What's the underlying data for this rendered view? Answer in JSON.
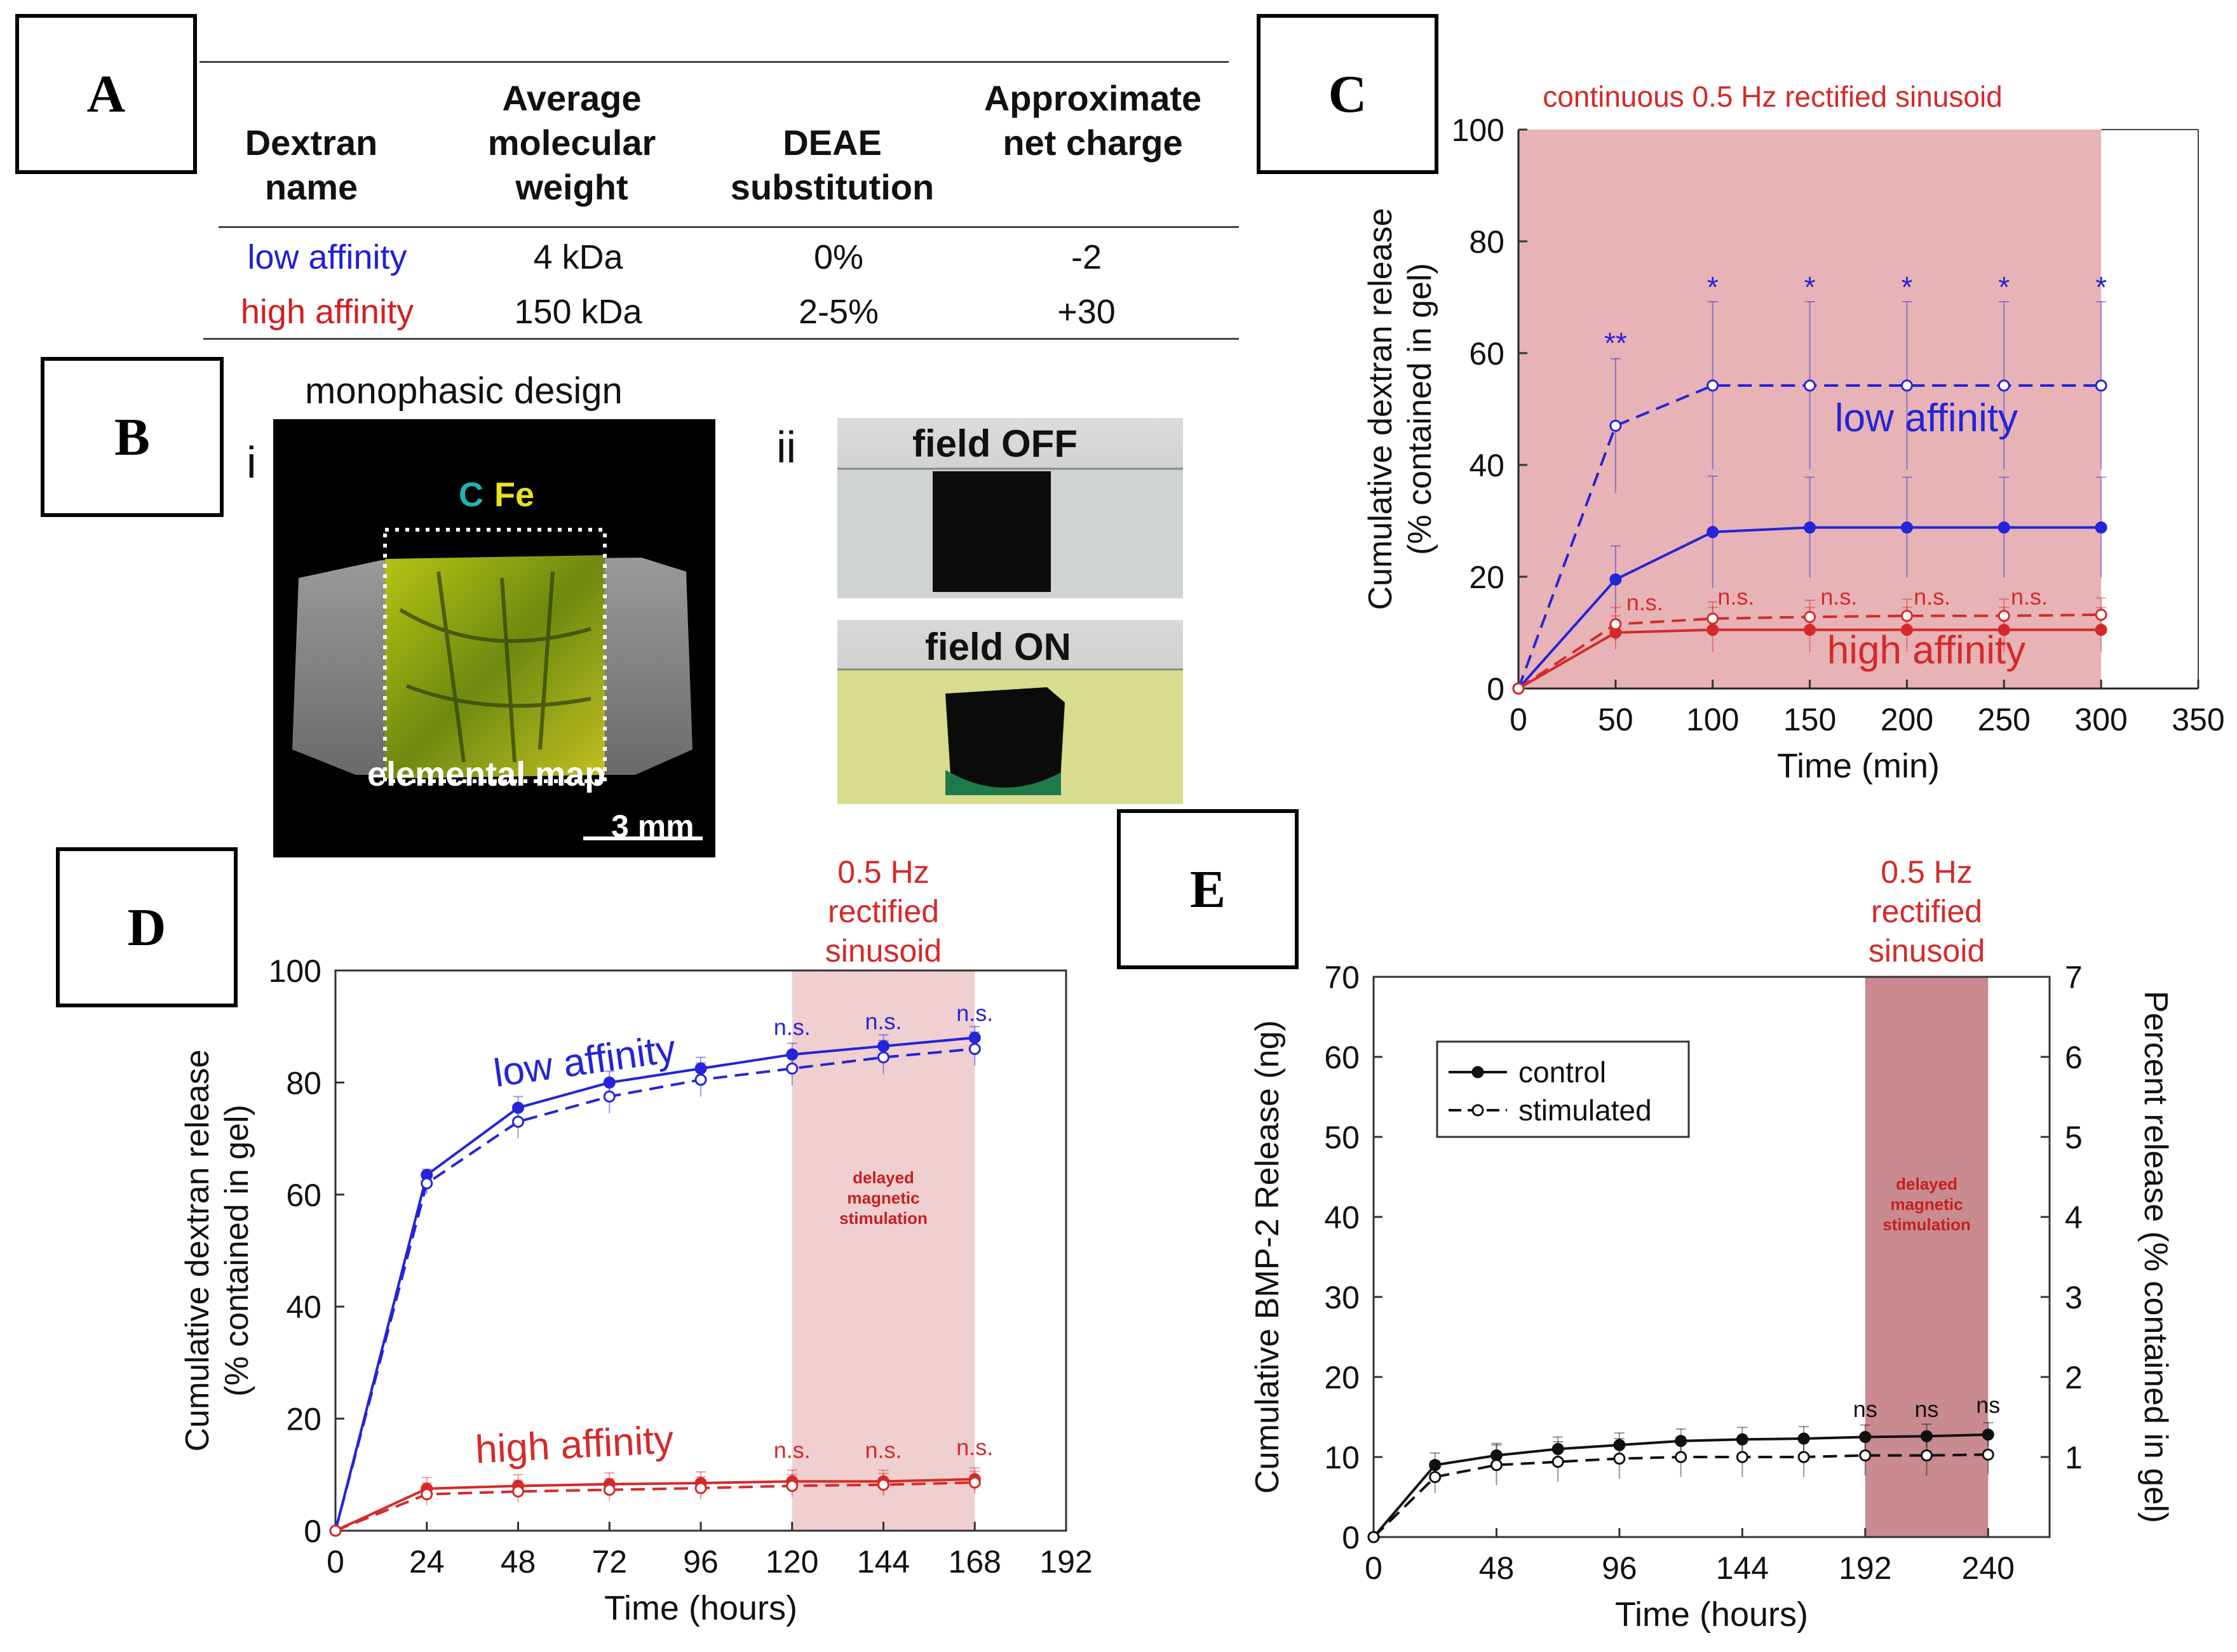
{
  "panels": {
    "A": "A",
    "B": "B",
    "C": "C",
    "D": "D",
    "E": "E"
  },
  "table": {
    "headers": [
      "Dextran name",
      "Average molecular weight",
      "DEAE substitution",
      "Approximate net charge"
    ],
    "rows": [
      {
        "name": "low affinity",
        "mw": "4 kDa",
        "deae": "0%",
        "charge": "-2",
        "color": "#1f1fd6"
      },
      {
        "name": "high affinity",
        "mw": "150 kDa",
        "deae": "2-5%",
        "charge": "+30",
        "color": "#d21f1f"
      }
    ]
  },
  "panelB": {
    "title": "monophasic design",
    "label_i": "i",
    "label_ii": "ii",
    "element_c": "C",
    "element_fe": "Fe",
    "map_label": "elemental map",
    "scale_bar": "3 mm",
    "field_off": "field OFF",
    "field_on": "field ON"
  },
  "colors": {
    "blue": "#2424d8",
    "red": "#d42a2a",
    "shade": "#e7b3b6",
    "shadeE": "#c98a90"
  },
  "chart_data": [
    {
      "id": "C",
      "type": "line",
      "title": "continuous 0.5 Hz rectified sinusoid",
      "xlabel": "Time (min)",
      "ylabel": "Cumulative dextran release (% contained in gel)",
      "xlim": [
        0,
        350
      ],
      "ylim": [
        0,
        100
      ],
      "xticks": [
        0,
        50,
        100,
        150,
        200,
        250,
        300,
        350
      ],
      "yticks": [
        0,
        20,
        40,
        60,
        80,
        100
      ],
      "shade": [
        0,
        300
      ],
      "x": [
        0,
        50,
        100,
        150,
        200,
        250,
        300
      ],
      "series": [
        {
          "name": "low affinity control",
          "color": "blue",
          "dash": false,
          "values": [
            0,
            19.5,
            28,
            28.8,
            28.8,
            28.8,
            28.8
          ],
          "err": [
            0,
            6,
            10,
            9,
            9,
            9,
            9
          ]
        },
        {
          "name": "low affinity stimulated",
          "color": "blue",
          "dash": true,
          "values": [
            0,
            47,
            54.2,
            54.2,
            54.2,
            54.2,
            54.2
          ],
          "err": [
            0,
            12,
            15,
            15,
            15,
            15,
            15
          ]
        },
        {
          "name": "high affinity control",
          "color": "red",
          "dash": false,
          "values": [
            0,
            10,
            10.5,
            10.5,
            10.5,
            10.5,
            10.5
          ],
          "err": [
            0,
            3,
            4,
            4,
            4,
            4,
            4
          ]
        },
        {
          "name": "high affinity stimulated",
          "color": "red",
          "dash": true,
          "values": [
            0,
            11.5,
            12.5,
            12.8,
            13,
            13,
            13.2
          ],
          "err": [
            0,
            3,
            3,
            3,
            3,
            3,
            3
          ]
        }
      ],
      "annotations": [
        {
          "text": "**",
          "x": 50,
          "y": 60,
          "color": "blue"
        },
        {
          "text": "*",
          "x": 100,
          "y": 70,
          "color": "blue"
        },
        {
          "text": "*",
          "x": 150,
          "y": 70,
          "color": "blue"
        },
        {
          "text": "*",
          "x": 200,
          "y": 70,
          "color": "blue"
        },
        {
          "text": "*",
          "x": 250,
          "y": 70,
          "color": "blue"
        },
        {
          "text": "*",
          "x": 300,
          "y": 70,
          "color": "blue"
        },
        {
          "text": "n.s.",
          "x": 65,
          "y": 14,
          "color": "red"
        },
        {
          "text": "n.s.",
          "x": 112,
          "y": 15,
          "color": "red"
        },
        {
          "text": "n.s.",
          "x": 165,
          "y": 15,
          "color": "red"
        },
        {
          "text": "n.s.",
          "x": 213,
          "y": 15,
          "color": "red"
        },
        {
          "text": "n.s.",
          "x": 263,
          "y": 15,
          "color": "red"
        }
      ],
      "labels": [
        {
          "text": "low affinity",
          "x": 210,
          "y": 46,
          "color": "blue"
        },
        {
          "text": "high affinity",
          "x": 210,
          "y": 4.5,
          "color": "red"
        }
      ]
    },
    {
      "id": "D",
      "type": "line",
      "title": "0.5 Hz rectified sinusoid",
      "xlabel": "Time (hours)",
      "ylabel": "Cumulative dextran release (% contained in gel)",
      "xlim": [
        0,
        192
      ],
      "ylim": [
        0,
        100
      ],
      "xticks": [
        0,
        24,
        48,
        72,
        96,
        120,
        144,
        168,
        192
      ],
      "yticks": [
        0,
        20,
        40,
        60,
        80,
        100
      ],
      "shade": [
        120,
        168
      ],
      "shade_text": "delayed magnetic stimulation",
      "x": [
        0,
        24,
        48,
        72,
        96,
        120,
        144,
        168
      ],
      "series": [
        {
          "name": "low affinity control",
          "color": "blue",
          "dash": false,
          "values": [
            0,
            63.5,
            75.5,
            80,
            82.5,
            85,
            86.5,
            88
          ],
          "err": [
            0,
            1,
            2,
            2,
            2,
            2,
            2,
            2
          ]
        },
        {
          "name": "low affinity stimulated",
          "color": "blue",
          "dash": true,
          "values": [
            0,
            62,
            73,
            77.5,
            80.5,
            82.5,
            84.5,
            86
          ],
          "err": [
            0,
            2,
            3,
            3,
            3,
            3,
            3,
            3
          ]
        },
        {
          "name": "high affinity control",
          "color": "red",
          "dash": false,
          "values": [
            0,
            7.5,
            8,
            8.3,
            8.5,
            8.8,
            8.8,
            9.2
          ],
          "err": [
            0,
            2,
            2,
            2,
            2,
            2,
            2,
            2
          ]
        },
        {
          "name": "high affinity stimulated",
          "color": "red",
          "dash": true,
          "values": [
            0,
            6.5,
            7,
            7.3,
            7.6,
            8,
            8.2,
            8.6
          ],
          "err": [
            0,
            2,
            2,
            2,
            2,
            2,
            2,
            2
          ]
        }
      ],
      "annotations": [
        {
          "text": "n.s.",
          "x": 120,
          "y": 88.5,
          "color": "blue"
        },
        {
          "text": "n.s.",
          "x": 144,
          "y": 89.5,
          "color": "blue"
        },
        {
          "text": "n.s.",
          "x": 168,
          "y": 91,
          "color": "blue"
        },
        {
          "text": "n.s.",
          "x": 120,
          "y": 13,
          "color": "red"
        },
        {
          "text": "n.s.",
          "x": 144,
          "y": 13,
          "color": "red"
        },
        {
          "text": "n.s.",
          "x": 168,
          "y": 13.5,
          "color": "red"
        }
      ],
      "labels": [
        {
          "text": "low affinity",
          "x": 66,
          "y": 81.5,
          "color": "blue",
          "rotate": -8
        },
        {
          "text": "high affinity",
          "x": 63,
          "y": 13,
          "color": "red",
          "rotate": -3
        }
      ]
    },
    {
      "id": "E",
      "type": "line",
      "title": "0.5 Hz rectified sinusoid",
      "xlabel": "Time (hours)",
      "ylabel": "Cumulative BMP-2 Release (ng)",
      "y2label": "Percent release (% contained in gel)",
      "xlim": [
        0,
        264
      ],
      "ylim": [
        0,
        70
      ],
      "y2lim": [
        0,
        7
      ],
      "xticks": [
        0,
        48,
        96,
        144,
        192,
        240
      ],
      "yticks": [
        0,
        10,
        20,
        30,
        40,
        50,
        60,
        70
      ],
      "y2ticks": [
        1,
        2,
        3,
        4,
        5,
        6,
        7
      ],
      "shade": [
        192,
        240
      ],
      "shade_text": "delayed magnetic stimulation",
      "x": [
        0,
        24,
        48,
        72,
        96,
        120,
        144,
        168,
        192,
        216,
        240
      ],
      "series": [
        {
          "name": "control",
          "color": "black",
          "dash": false,
          "values": [
            0,
            9,
            10.2,
            11,
            11.5,
            12,
            12.2,
            12.3,
            12.5,
            12.6,
            12.8
          ],
          "err": [
            0,
            1.5,
            1.5,
            1.5,
            1.5,
            1.5,
            1.5,
            1.5,
            1.5,
            1.5,
            1.5
          ]
        },
        {
          "name": "stimulated",
          "color": "black",
          "dash": true,
          "values": [
            0,
            7.5,
            9,
            9.4,
            9.8,
            10,
            10,
            10,
            10.2,
            10.2,
            10.3
          ],
          "err": [
            0,
            2,
            2.5,
            2.5,
            2.5,
            2.5,
            2.5,
            2.5,
            2.5,
            2.5,
            2.5
          ]
        }
      ],
      "legend": [
        "control",
        "stimulated"
      ],
      "annotations": [
        {
          "text": "ns",
          "x": 192,
          "y": 15,
          "color": "black"
        },
        {
          "text": "ns",
          "x": 216,
          "y": 15,
          "color": "black"
        },
        {
          "text": "ns",
          "x": 240,
          "y": 15.5,
          "color": "black"
        }
      ]
    }
  ]
}
